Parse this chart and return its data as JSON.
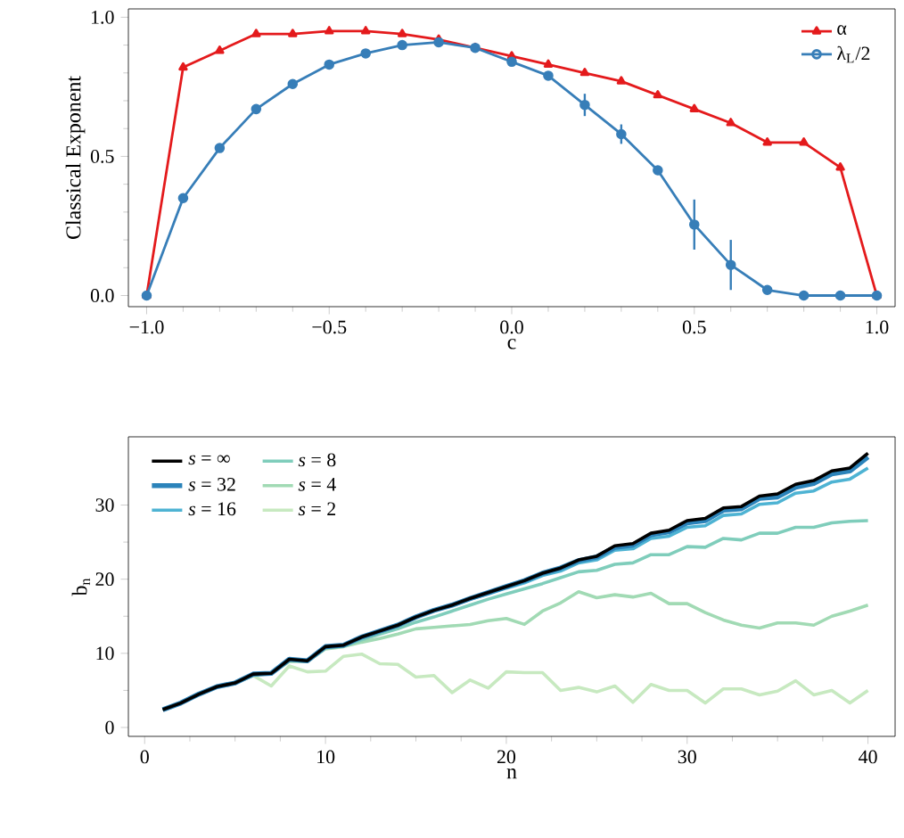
{
  "chart_data": [
    {
      "type": "line",
      "xlabel": "c",
      "ylabel": "Classical Exponent",
      "x": [
        -1.0,
        -0.9,
        -0.8,
        -0.7,
        -0.6,
        -0.5,
        -0.4,
        -0.3,
        -0.2,
        -0.1,
        0.0,
        0.1,
        0.2,
        0.3,
        0.4,
        0.5,
        0.6,
        0.7,
        0.8,
        0.9,
        1.0
      ],
      "xlim": [
        -1.05,
        1.05
      ],
      "ylim": [
        -0.04,
        1.03
      ],
      "xticks": [
        {
          "value": -1.0,
          "label": "−1.0"
        },
        {
          "value": -0.5,
          "label": "−0.5"
        },
        {
          "value": 0.0,
          "label": "0.0"
        },
        {
          "value": 0.5,
          "label": "0.5"
        },
        {
          "value": 1.0,
          "label": "1.0"
        }
      ],
      "yticks": [
        {
          "value": 0.0,
          "label": "0.0"
        },
        {
          "value": 0.5,
          "label": "0.5"
        },
        {
          "value": 1.0,
          "label": "1.0"
        }
      ],
      "legend": "top right",
      "series": [
        {
          "name": "α",
          "color": "#e41a1c",
          "marker": "triangle",
          "values": [
            0.0,
            0.82,
            0.88,
            0.94,
            0.94,
            0.95,
            0.95,
            0.94,
            0.92,
            0.89,
            0.86,
            0.83,
            0.8,
            0.77,
            0.72,
            0.67,
            0.62,
            0.55,
            0.55,
            0.46,
            0.0
          ]
        },
        {
          "name": "λ$_{L}$/2",
          "color": "#377eb8",
          "marker": "circle",
          "values": [
            0.0,
            0.35,
            0.53,
            0.67,
            0.76,
            0.83,
            0.87,
            0.9,
            0.91,
            0.89,
            0.84,
            0.79,
            0.685,
            0.58,
            0.45,
            0.255,
            0.11,
            0.02,
            0.0,
            0.0,
            0.0
          ],
          "errors": [
            0.01,
            0.01,
            0.01,
            0.01,
            0.01,
            0.01,
            0.01,
            0.01,
            0.01,
            0.01,
            0.01,
            0.01,
            0.04,
            0.035,
            0.015,
            0.09,
            0.09,
            0.01,
            0.005,
            0.005,
            0.005
          ]
        }
      ]
    },
    {
      "type": "line",
      "xlabel": "n",
      "ylabel": "b$_{n}$",
      "x": [
        1,
        2,
        3,
        4,
        5,
        6,
        7,
        8,
        9,
        10,
        11,
        12,
        13,
        14,
        15,
        16,
        17,
        18,
        19,
        20,
        21,
        22,
        23,
        24,
        25,
        26,
        27,
        28,
        29,
        30,
        31,
        32,
        33,
        34,
        35,
        36,
        37,
        38,
        39,
        40
      ],
      "xlim": [
        -0.9,
        41.5
      ],
      "ylim": [
        -1.2,
        39.2
      ],
      "xticks": [
        0,
        10,
        20,
        30,
        40
      ],
      "yticks": [
        0,
        10,
        20,
        30
      ],
      "legend": "top left",
      "series": [
        {
          "name": "*s* = ∞",
          "color": "#000000",
          "values": [
            2.4,
            3.3,
            4.5,
            5.5,
            6.0,
            7.2,
            7.3,
            9.2,
            9.0,
            10.9,
            11.1,
            12.2,
            13.0,
            13.8,
            14.9,
            15.8,
            16.5,
            17.4,
            18.2,
            19.0,
            19.8,
            20.8,
            21.5,
            22.6,
            23.1,
            24.5,
            24.8,
            26.2,
            26.6,
            27.9,
            28.2,
            29.6,
            29.8,
            31.2,
            31.5,
            32.8,
            33.3,
            34.6,
            35.0,
            37.0
          ]
        },
        {
          "name": "*s* = 32",
          "color": "#2b83ba",
          "values": [
            2.4,
            3.3,
            4.5,
            5.5,
            6.0,
            7.2,
            7.3,
            9.2,
            9.0,
            10.9,
            11.1,
            12.2,
            13.0,
            13.8,
            14.9,
            15.8,
            16.5,
            17.4,
            18.2,
            19.0,
            19.8,
            20.8,
            21.5,
            22.5,
            23.0,
            24.3,
            24.6,
            26.0,
            26.4,
            27.6,
            27.9,
            29.3,
            29.5,
            30.9,
            31.1,
            32.4,
            32.9,
            34.2,
            34.6,
            36.5
          ]
        },
        {
          "name": "*s* = 16",
          "color": "#4eb3d3",
          "values": [
            2.4,
            3.3,
            4.5,
            5.5,
            6.0,
            7.2,
            7.3,
            9.2,
            9.0,
            10.9,
            11.1,
            12.2,
            13.0,
            13.8,
            14.9,
            15.8,
            16.5,
            17.3,
            18.0,
            18.8,
            19.5,
            20.5,
            21.1,
            22.2,
            22.6,
            23.9,
            24.1,
            25.5,
            25.8,
            27.0,
            27.2,
            28.6,
            28.8,
            30.1,
            30.3,
            31.6,
            31.9,
            33.1,
            33.5,
            35.0
          ]
        },
        {
          "name": "*s* = 8",
          "color": "#7fcdbb",
          "values": [
            2.4,
            3.3,
            4.5,
            5.5,
            6.0,
            7.2,
            7.3,
            9.2,
            9.0,
            10.9,
            11.0,
            11.8,
            12.6,
            13.3,
            14.2,
            14.9,
            15.7,
            16.5,
            17.3,
            18.0,
            18.7,
            19.4,
            20.2,
            21.0,
            21.2,
            22.0,
            22.2,
            23.3,
            23.3,
            24.4,
            24.3,
            25.5,
            25.3,
            26.2,
            26.2,
            27.0,
            27.0,
            27.6,
            27.8,
            27.9
          ]
        },
        {
          "name": "*s* = 4",
          "color": "#a1dab4",
          "values": [
            2.4,
            3.3,
            4.5,
            5.5,
            6.0,
            7.0,
            7.3,
            8.9,
            8.9,
            10.6,
            10.9,
            11.5,
            12.0,
            12.6,
            13.3,
            13.5,
            13.7,
            13.9,
            14.4,
            14.7,
            13.9,
            15.7,
            16.8,
            18.3,
            17.5,
            17.9,
            17.6,
            18.1,
            16.7,
            16.7,
            15.5,
            14.5,
            13.8,
            13.4,
            14.1,
            14.1,
            13.8,
            15.0,
            15.7,
            16.5
          ]
        },
        {
          "name": "*s* = 2",
          "color": "#c7e9c0",
          "values": [
            2.4,
            3.3,
            4.5,
            5.5,
            6.0,
            7.0,
            5.6,
            8.3,
            7.5,
            7.6,
            9.6,
            9.9,
            8.6,
            8.5,
            6.8,
            7.0,
            4.7,
            6.4,
            5.3,
            7.5,
            7.4,
            7.4,
            5.0,
            5.4,
            4.8,
            5.6,
            3.4,
            5.8,
            5.0,
            5.0,
            3.3,
            5.2,
            5.2,
            4.4,
            4.9,
            6.3,
            4.4,
            5.0,
            3.3,
            5.0
          ]
        }
      ]
    }
  ]
}
